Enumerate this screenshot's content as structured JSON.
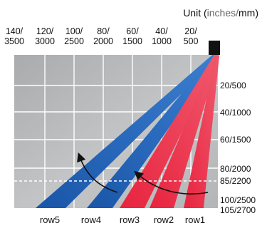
{
  "header": {
    "unit_prefix": "Unit (",
    "unit_inches": "inches",
    "unit_slash": "/",
    "unit_mm": "mm",
    "unit_close": ")"
  },
  "top_scale": [
    {
      "inches": "140/",
      "mm": "3500"
    },
    {
      "inches": "120/",
      "mm": "3000"
    },
    {
      "inches": "100/",
      "mm": "2500"
    },
    {
      "inches": "80/",
      "mm": "2000"
    },
    {
      "inches": "60/",
      "mm": "1500"
    },
    {
      "inches": "40/",
      "mm": "1000"
    },
    {
      "inches": "20/",
      "mm": "500"
    }
  ],
  "right_scale": [
    "20/500",
    "40/1000",
    "60/1500",
    "80/2000",
    "85/2200",
    "100/2500",
    "105/2700"
  ],
  "rows": [
    "row5",
    "row4",
    "row3",
    "row2",
    "row1"
  ],
  "colors": {
    "blue_beam": "#1f63b8",
    "red_beam": "#ee3550",
    "grid_bg": "#b7b9bb",
    "grid_line": "#ffffff",
    "sensor": "#111111"
  }
}
